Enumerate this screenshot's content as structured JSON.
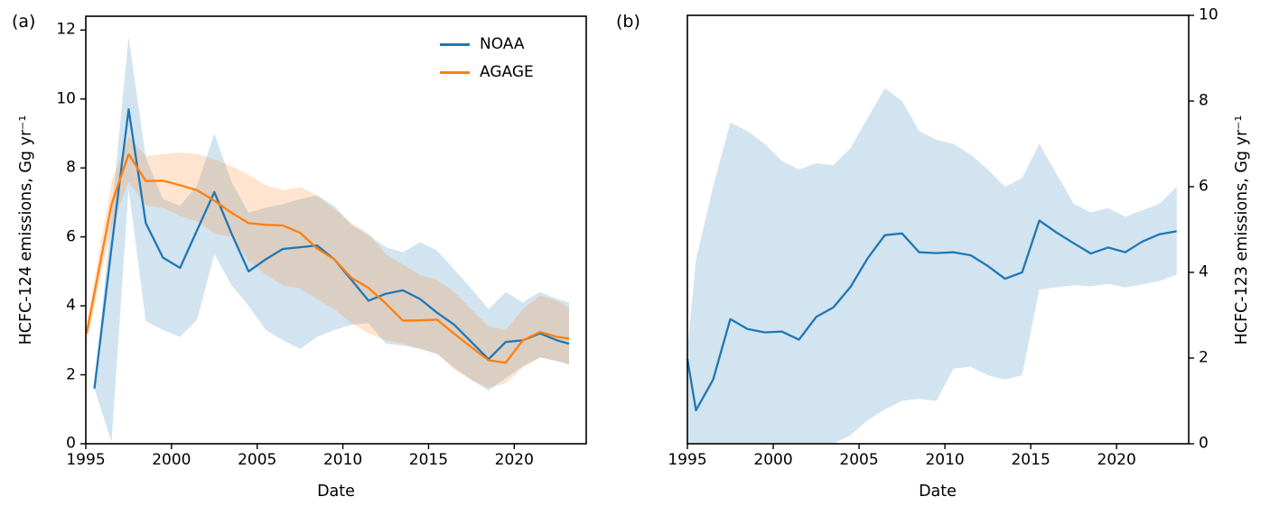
{
  "figure": {
    "panel_a_tag": "(a)",
    "panel_b_tag": "(b)",
    "background": "#ffffff",
    "text_color": "#000000"
  },
  "chart_data": [
    {
      "type": "line",
      "panel": "a",
      "xlabel": "Date",
      "ylabel": "HCFC-124 emissions, Gg yr⁻¹",
      "ylabel_side": "left",
      "xlim": [
        1995,
        2024.2
      ],
      "ylim": [
        0,
        12.4
      ],
      "xticks": [
        1995,
        2000,
        2005,
        2010,
        2015,
        2020
      ],
      "yticks": [
        0,
        2,
        4,
        6,
        8,
        10,
        12
      ],
      "grid": false,
      "legend": {
        "position": "upper right",
        "entries": [
          {
            "label": "NOAA",
            "color": "#1f77b4"
          },
          {
            "label": "AGAGE",
            "color": "#ff7f0e"
          }
        ]
      },
      "series": [
        {
          "name": "NOAA",
          "color": "#1f77b4",
          "band_alpha": 0.2,
          "x": [
            1995.5,
            1996.5,
            1997.5,
            1998.5,
            1999.5,
            2000.5,
            2001.5,
            2002.5,
            2003.5,
            2004.5,
            2005.5,
            2006.5,
            2007.5,
            2008.5,
            2009.5,
            2010.5,
            2011.5,
            2012.5,
            2013.5,
            2014.5,
            2015.5,
            2016.5,
            2017.5,
            2018.5,
            2019.5,
            2020.5,
            2021.5,
            2022.5,
            2023.2
          ],
          "y": [
            1.6,
            5.7,
            9.7,
            6.4,
            5.4,
            5.1,
            6.2,
            7.3,
            6.1,
            5.0,
            5.35,
            5.65,
            5.7,
            5.75,
            5.35,
            4.75,
            4.15,
            4.35,
            4.45,
            4.2,
            3.8,
            3.45,
            2.95,
            2.45,
            2.95,
            3.0,
            3.2,
            3.0,
            2.9
          ],
          "band_upper": [
            1.6,
            6.7,
            11.8,
            8.3,
            7.1,
            6.9,
            7.5,
            9.0,
            7.6,
            6.7,
            6.85,
            6.95,
            7.1,
            7.2,
            6.9,
            6.35,
            6.05,
            5.7,
            5.55,
            5.85,
            5.6,
            5.05,
            4.5,
            3.9,
            4.4,
            4.1,
            4.4,
            4.2,
            4.1
          ],
          "band_lower": [
            1.6,
            0.05,
            7.4,
            3.55,
            3.3,
            3.1,
            3.6,
            5.5,
            4.6,
            4.0,
            3.3,
            3.0,
            2.75,
            3.1,
            3.3,
            3.45,
            3.5,
            2.9,
            2.85,
            2.75,
            2.6,
            2.2,
            1.85,
            1.55,
            1.9,
            2.25,
            2.5,
            2.4,
            2.3
          ]
        },
        {
          "name": "AGAGE",
          "color": "#ff7f0e",
          "band_alpha": 0.2,
          "x": [
            1995.05,
            1996.5,
            1997.5,
            1998.5,
            1999.5,
            2000.5,
            2001.5,
            2002.5,
            2003.5,
            2004.5,
            2005.5,
            2006.5,
            2007.5,
            2008.5,
            2009.5,
            2010.5,
            2011.5,
            2012.5,
            2013.5,
            2014.5,
            2015.5,
            2016.5,
            2017.5,
            2018.5,
            2019.5,
            2020.5,
            2021.5,
            2022.5,
            2023.2
          ],
          "y": [
            3.2,
            6.95,
            8.4,
            7.62,
            7.63,
            7.5,
            7.35,
            7.05,
            6.7,
            6.4,
            6.35,
            6.33,
            6.12,
            5.66,
            5.35,
            4.81,
            4.52,
            4.07,
            3.57,
            3.58,
            3.6,
            3.19,
            2.8,
            2.42,
            2.35,
            3.0,
            3.24,
            3.1,
            3.05
          ],
          "band_upper": [
            3.5,
            7.6,
            8.9,
            8.35,
            8.4,
            8.45,
            8.4,
            8.25,
            8.05,
            7.8,
            7.5,
            7.35,
            7.45,
            7.2,
            6.8,
            6.4,
            6.1,
            5.5,
            5.2,
            4.9,
            4.75,
            4.4,
            3.9,
            3.4,
            3.3,
            3.9,
            4.3,
            4.15,
            3.95
          ],
          "band_lower": [
            2.9,
            6.3,
            7.6,
            6.9,
            6.85,
            6.6,
            6.45,
            6.1,
            6.0,
            5.3,
            4.9,
            4.6,
            4.5,
            4.2,
            3.9,
            3.5,
            3.2,
            3.0,
            2.9,
            2.76,
            2.62,
            2.15,
            1.85,
            1.62,
            1.75,
            2.2,
            2.5,
            2.4,
            2.3
          ]
        }
      ]
    },
    {
      "type": "line",
      "panel": "b",
      "xlabel": "Date",
      "ylabel": "HCFC-123 emissions, Gg yr⁻¹",
      "ylabel_side": "right",
      "xlim": [
        1995,
        2024.2
      ],
      "ylim": [
        0,
        10
      ],
      "xticks": [
        1995,
        2000,
        2005,
        2010,
        2015,
        2020
      ],
      "yticks": [
        0,
        2,
        4,
        6,
        8,
        10
      ],
      "grid": false,
      "legend": null,
      "series": [
        {
          "name": "NOAA",
          "color": "#1f77b4",
          "band_alpha": 0.2,
          "x": [
            1995.0,
            1995.5,
            1996.5,
            1997.5,
            1998.5,
            1999.5,
            2000.5,
            2001.5,
            2002.5,
            2003.5,
            2004.5,
            2005.5,
            2006.5,
            2007.5,
            2008.5,
            2009.5,
            2010.5,
            2011.5,
            2012.5,
            2013.5,
            2014.5,
            2015.5,
            2016.5,
            2017.5,
            2018.5,
            2019.5,
            2020.5,
            2021.5,
            2022.5,
            2023.5
          ],
          "y": [
            1.98,
            0.78,
            1.5,
            2.91,
            2.68,
            2.6,
            2.62,
            2.43,
            2.96,
            3.18,
            3.66,
            4.33,
            4.87,
            4.91,
            4.47,
            4.45,
            4.47,
            4.4,
            4.15,
            3.85,
            4.0,
            5.21,
            4.93,
            4.68,
            4.44,
            4.58,
            4.47,
            4.72,
            4.89,
            4.96
          ],
          "band_upper": [
            2.2,
            4.3,
            6.0,
            7.5,
            7.3,
            7.0,
            6.6,
            6.4,
            6.55,
            6.5,
            6.9,
            7.6,
            8.3,
            8.0,
            7.3,
            7.1,
            7.0,
            6.75,
            6.4,
            6.0,
            6.2,
            7.0,
            6.3,
            5.6,
            5.4,
            5.5,
            5.3,
            5.45,
            5.6,
            6.0
          ],
          "band_lower": [
            0,
            0,
            0,
            0,
            0,
            0,
            0,
            0,
            0,
            0,
            0.2,
            0.55,
            0.8,
            1.0,
            1.05,
            1.0,
            1.75,
            1.8,
            1.6,
            1.5,
            1.6,
            3.6,
            3.65,
            3.7,
            3.68,
            3.73,
            3.65,
            3.72,
            3.8,
            3.95
          ]
        }
      ]
    }
  ]
}
